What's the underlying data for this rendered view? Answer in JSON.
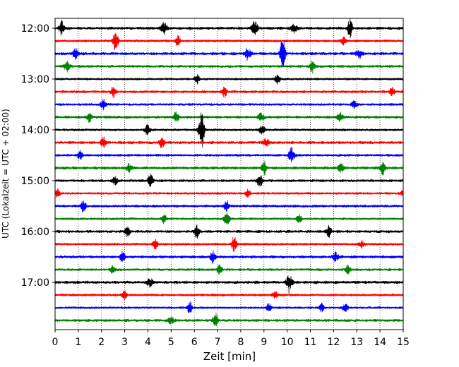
{
  "chart_data": {
    "type": "line",
    "title": "",
    "xlabel": "Zeit  [min]",
    "ylabel": "UTC (Lokalzeit = UTC + 02:00)",
    "xlim": [
      0,
      15
    ],
    "x_ticks": [
      "0",
      "1",
      "2",
      "3",
      "4",
      "5",
      "6",
      "7",
      "8",
      "9",
      "10",
      "11",
      "12",
      "13",
      "14",
      "15"
    ],
    "y_tick_labels": [
      "12:00",
      "13:00",
      "14:00",
      "15:00",
      "16:00",
      "17:00"
    ],
    "x_grid": "dotted vertical lines at each minute",
    "trace_interval_minutes": 15,
    "trace_colors_cycle": [
      "#000000",
      "#ff0000",
      "#0000ff",
      "#008000"
    ],
    "traces": [
      {
        "start": "12:00",
        "color": "#000000",
        "events": [
          {
            "x": 0.3,
            "amp": 0.4
          },
          {
            "x": 4.7,
            "amp": 0.45
          },
          {
            "x": 8.6,
            "amp": 0.55
          },
          {
            "x": 10.3,
            "amp": 0.35
          },
          {
            "x": 12.7,
            "amp": 0.5
          }
        ]
      },
      {
        "start": "12:15",
        "color": "#ff0000",
        "events": [
          {
            "x": 2.6,
            "amp": 0.7
          },
          {
            "x": 5.3,
            "amp": 0.3
          },
          {
            "x": 12.4,
            "amp": 0.3
          }
        ]
      },
      {
        "start": "12:30",
        "color": "#0000ff",
        "events": [
          {
            "x": 0.9,
            "amp": 0.3
          },
          {
            "x": 8.3,
            "amp": 0.45
          },
          {
            "x": 9.8,
            "amp": 0.9
          },
          {
            "x": 13.1,
            "amp": 0.3
          }
        ]
      },
      {
        "start": "12:45",
        "color": "#008000",
        "events": [
          {
            "x": 0.5,
            "amp": 0.4
          },
          {
            "x": 11.1,
            "amp": 0.4
          }
        ]
      },
      {
        "start": "13:00",
        "color": "#000000",
        "events": [
          {
            "x": 6.1,
            "amp": 0.3
          },
          {
            "x": 9.6,
            "amp": 0.3
          }
        ]
      },
      {
        "start": "13:15",
        "color": "#ff0000",
        "events": [
          {
            "x": 2.5,
            "amp": 0.3
          },
          {
            "x": 7.3,
            "amp": 0.3
          },
          {
            "x": 14.5,
            "amp": 0.25
          }
        ]
      },
      {
        "start": "13:30",
        "color": "#0000ff",
        "events": [
          {
            "x": 2.1,
            "amp": 0.4
          },
          {
            "x": 12.9,
            "amp": 0.3
          }
        ]
      },
      {
        "start": "13:45",
        "color": "#008000",
        "events": [
          {
            "x": 1.5,
            "amp": 0.3
          },
          {
            "x": 5.2,
            "amp": 0.3
          },
          {
            "x": 8.9,
            "amp": 0.3
          },
          {
            "x": 12.3,
            "amp": 0.3
          }
        ]
      },
      {
        "start": "14:00",
        "color": "#000000",
        "events": [
          {
            "x": 4.0,
            "amp": 0.4
          },
          {
            "x": 6.3,
            "amp": 1.4
          },
          {
            "x": 8.9,
            "amp": 0.4
          }
        ]
      },
      {
        "start": "14:15",
        "color": "#ff0000",
        "events": [
          {
            "x": 2.1,
            "amp": 0.3
          },
          {
            "x": 4.6,
            "amp": 0.3
          },
          {
            "x": 9.1,
            "amp": 0.3
          }
        ]
      },
      {
        "start": "14:30",
        "color": "#0000ff",
        "events": [
          {
            "x": 1.1,
            "amp": 0.3
          },
          {
            "x": 10.2,
            "amp": 0.7
          }
        ]
      },
      {
        "start": "14:45",
        "color": "#008000",
        "events": [
          {
            "x": 3.2,
            "amp": 0.3
          },
          {
            "x": 9.0,
            "amp": 0.35
          },
          {
            "x": 12.3,
            "amp": 0.3
          },
          {
            "x": 14.1,
            "amp": 0.35
          }
        ]
      },
      {
        "start": "15:00",
        "color": "#000000",
        "events": [
          {
            "x": 2.6,
            "amp": 0.3
          },
          {
            "x": 4.1,
            "amp": 0.5
          },
          {
            "x": 8.8,
            "amp": 0.5
          }
        ]
      },
      {
        "start": "15:15",
        "color": "#ff0000",
        "events": [
          {
            "x": 0.1,
            "amp": 0.3
          },
          {
            "x": 8.3,
            "amp": 0.3
          },
          {
            "x": 15.0,
            "amp": 0.3
          }
        ]
      },
      {
        "start": "15:30",
        "color": "#0000ff",
        "events": [
          {
            "x": 1.2,
            "amp": 0.35
          },
          {
            "x": 7.4,
            "amp": 0.3
          }
        ]
      },
      {
        "start": "15:45",
        "color": "#008000",
        "events": [
          {
            "x": 4.7,
            "amp": 0.3
          },
          {
            "x": 7.4,
            "amp": 0.6
          },
          {
            "x": 10.5,
            "amp": 0.3
          }
        ]
      },
      {
        "start": "16:00",
        "color": "#000000",
        "events": [
          {
            "x": 3.1,
            "amp": 0.3
          },
          {
            "x": 6.1,
            "amp": 0.35
          },
          {
            "x": 11.8,
            "amp": 0.3
          }
        ]
      },
      {
        "start": "16:15",
        "color": "#ff0000",
        "events": [
          {
            "x": 4.3,
            "amp": 0.3
          },
          {
            "x": 7.7,
            "amp": 0.5
          },
          {
            "x": 13.2,
            "amp": 0.3
          }
        ]
      },
      {
        "start": "16:30",
        "color": "#0000ff",
        "events": [
          {
            "x": 2.9,
            "amp": 0.3
          },
          {
            "x": 6.8,
            "amp": 0.3
          },
          {
            "x": 12.1,
            "amp": 0.3
          }
        ]
      },
      {
        "start": "16:45",
        "color": "#008000",
        "events": [
          {
            "x": 2.5,
            "amp": 0.3
          },
          {
            "x": 7.1,
            "amp": 0.3
          },
          {
            "x": 12.6,
            "amp": 0.3
          }
        ]
      },
      {
        "start": "17:00",
        "color": "#000000",
        "events": [
          {
            "x": 4.1,
            "amp": 0.3
          },
          {
            "x": 10.1,
            "amp": 0.6
          }
        ]
      },
      {
        "start": "17:15",
        "color": "#ff0000",
        "events": [
          {
            "x": 3.0,
            "amp": 0.25
          },
          {
            "x": 9.5,
            "amp": 0.25
          }
        ]
      },
      {
        "start": "17:30",
        "color": "#0000ff",
        "events": [
          {
            "x": 5.8,
            "amp": 0.4
          },
          {
            "x": 9.2,
            "amp": 0.3
          },
          {
            "x": 11.5,
            "amp": 0.3
          },
          {
            "x": 12.5,
            "amp": 0.35
          }
        ]
      },
      {
        "start": "17:45",
        "color": "#008000",
        "events": [
          {
            "x": 5.0,
            "amp": 0.3
          },
          {
            "x": 6.9,
            "amp": 0.4
          }
        ]
      }
    ]
  }
}
